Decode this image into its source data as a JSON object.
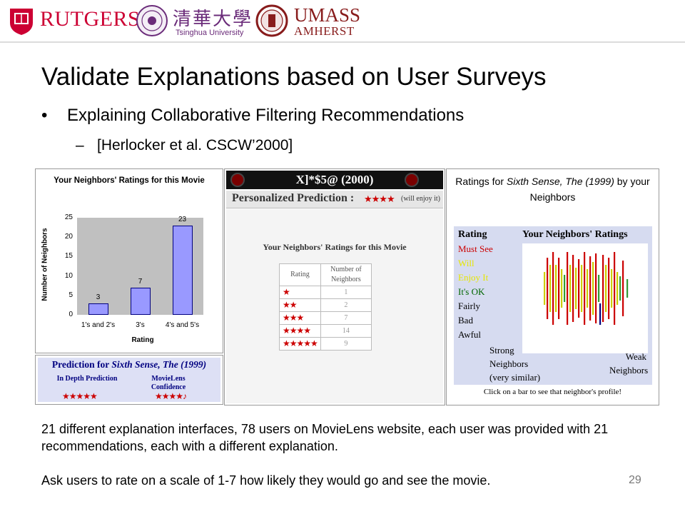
{
  "header": {
    "rutgers": "RUTGERS",
    "tsinghua_cn": "清華大學",
    "tsinghua_en": "Tsinghua University",
    "umass": "UMASS",
    "amherst": "AMHERST",
    "colors": {
      "rutgers": "#cc0033",
      "tsinghua": "#6b2c7a",
      "umass": "#881c1c"
    }
  },
  "slide": {
    "title": "Validate Explanations based on User Surveys",
    "bullet1": "Explaining Collaborative Filtering Recommendations",
    "bullet2": "[Herlocker et al. CSCW’2000]",
    "body1": "21 different explanation interfaces, 78 users on MovieLens website, each user was provided with 21 recommendations, each with a different explanation.",
    "body2": "Ask users to rate on a scale of 1-7 how likely they would go and see the movie.",
    "page_number": "29"
  },
  "chart_data": {
    "type": "bar",
    "title": "Your Neighbors' Ratings for this Movie",
    "xlabel": "Rating",
    "ylabel": "Number of Neighbors",
    "categories": [
      "1's and 2's",
      "3's",
      "4's and 5's"
    ],
    "values": [
      3,
      7,
      23
    ],
    "ylim": [
      0,
      25
    ],
    "yticks": [
      0,
      5,
      10,
      15,
      20,
      25
    ],
    "data_labels": [
      "3",
      "7",
      "23"
    ],
    "colors": {
      "bar": "#9999ff",
      "plot_bg": "#c0c0c0"
    }
  },
  "prediction_box": {
    "heading_prefix": "Prediction for ",
    "heading_movie": "Sixth Sense, The (1999)",
    "col1": "In Depth Prediction",
    "col2": "MovieLens Confidence",
    "stars1": "★★★★★",
    "stars2": "★★★★♪"
  },
  "panel2": {
    "title": "X]*$5@ (2000)",
    "prediction_label": "Personalized Prediction :",
    "prediction_stars": "★★★★",
    "prediction_note": "(will enjoy it)",
    "subtitle": "Your Neighbors' Ratings for this Movie",
    "col_rating": "Rating",
    "col_count": "Number of Neighbors",
    "rows": [
      {
        "stars": "★",
        "count": "1"
      },
      {
        "stars": "★★",
        "count": "2"
      },
      {
        "stars": "★★★",
        "count": "7"
      },
      {
        "stars": "★★★★",
        "count": "14"
      },
      {
        "stars": "★★★★★",
        "count": "9"
      }
    ]
  },
  "panel3": {
    "title_prefix": "Ratings for ",
    "title_movie": "Sixth Sense, The (1999)",
    "title_suffix": " by your Neighbors",
    "rating_header": "Rating",
    "neighbors_header": "Your Neighbors' Ratings",
    "levels": [
      {
        "label": "Must See",
        "color": "#cc0000"
      },
      {
        "label": "Will",
        "color": "#e6e600"
      },
      {
        "label": "Enjoy It",
        "color": "#e6e600"
      },
      {
        "label": "It's OK",
        "color": "#006600"
      },
      {
        "label": "Fairly",
        "color": "#000000"
      },
      {
        "label": "Bad",
        "color": "#000000"
      },
      {
        "label": "Awful",
        "color": "#000000"
      }
    ],
    "strong": "Strong Neighbors (very similar)",
    "strong_l1": "Strong",
    "strong_l2": "Neighbors",
    "strong_l3": "(very similar)",
    "weak_l1": "Weak",
    "weak_l2": "Neighbors",
    "click_note": "Click on a bar to see that neighbor's profile!",
    "bar_colors": {
      "red": "#cc0000",
      "yellow": "#cccc00",
      "green": "#339933",
      "navy": "#000080"
    }
  }
}
